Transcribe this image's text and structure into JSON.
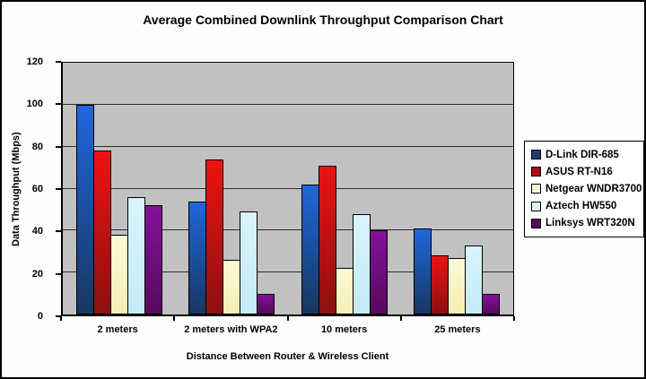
{
  "chart_data": {
    "type": "bar",
    "title": "Average Combined Downlink Throughput Comparison Chart",
    "xlabel": "Distance Between Router & Wireless Client",
    "ylabel": "Data Throughput (Mbps)",
    "categories": [
      "2 meters",
      "2 meters with WPA2",
      "10 meters",
      "25 meters"
    ],
    "series": [
      {
        "name": "D-Link DIR-685",
        "values": [
          100,
          54,
          62,
          41
        ],
        "color_top": "#2066dd",
        "color_bottom": "#173760",
        "legend_color": "#1b3f75"
      },
      {
        "name": "ASUS RT-N16",
        "values": [
          78,
          74,
          71,
          28
        ],
        "color_top": "#ee1212",
        "color_bottom": "#8c1010",
        "legend_color": "#a81012"
      },
      {
        "name": "Netgear WNDR3700",
        "values": [
          38,
          26,
          22,
          27
        ],
        "color_top": "#fdf9d5",
        "color_bottom": "#f6edb4",
        "legend_color": "#f7f2d2"
      },
      {
        "name": "Aztech HW550",
        "values": [
          56,
          49,
          48,
          33
        ],
        "color_top": "#d9f4fc",
        "color_bottom": "#c3ebf7",
        "legend_color": "#def4ef"
      },
      {
        "name": "Linksys WRT320N",
        "values": [
          52,
          10,
          40,
          10
        ],
        "color_top": "#83119a",
        "color_bottom": "#560a5c",
        "legend_color": "#550a57"
      }
    ],
    "ylim": [
      0,
      120
    ],
    "yticks": [
      0,
      20,
      40,
      60,
      80,
      100,
      120
    ],
    "grid": true,
    "legend_position": "right",
    "plot_bg": "#c1c1c1",
    "gridline_color": "#2e2e2e"
  }
}
